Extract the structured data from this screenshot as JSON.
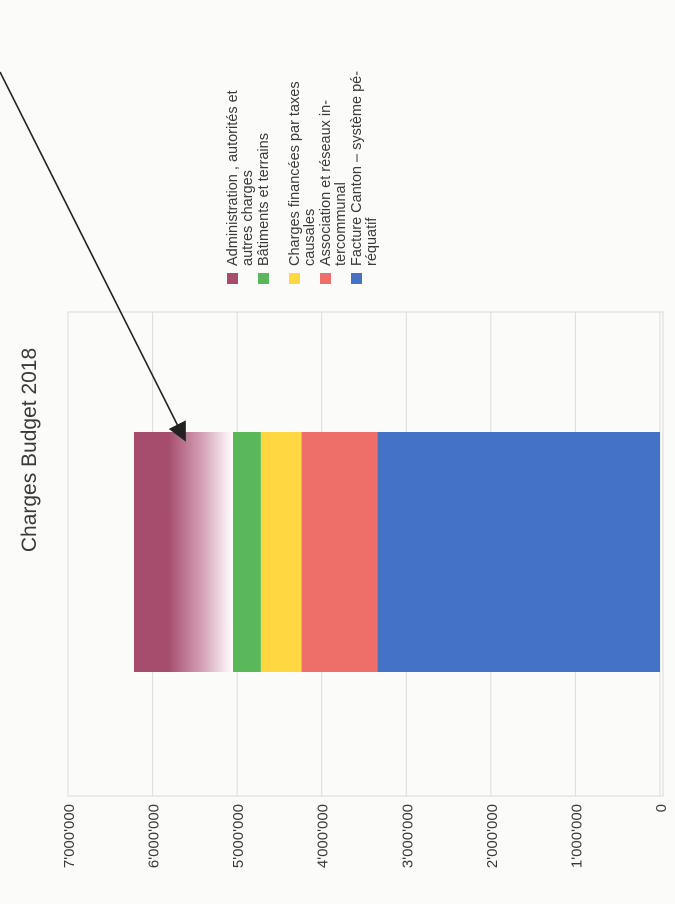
{
  "chart_data": {
    "type": "bar",
    "stacked": true,
    "orientation": "rotated-90-clockwise",
    "title": "Charges Budget 2018",
    "xlabel": "",
    "ylabel": "",
    "ylim": [
      0,
      7000000
    ],
    "ticks": [
      "0",
      "1'000'000",
      "2'000'000",
      "3'000'000",
      "4'000'000",
      "5'000'000",
      "6'000'000",
      "7'000'000"
    ],
    "tick_values": [
      0,
      1000000,
      2000000,
      3000000,
      4000000,
      5000000,
      6000000,
      7000000
    ],
    "grid": true,
    "legend_position": "right",
    "series": [
      {
        "name": "Facture Canton – système péréquatif",
        "lines": [
          "Facture Canton – système pé-",
          "réquatif"
        ],
        "value": 3340000,
        "color": "#4472c4"
      },
      {
        "name": "Association et réseaux intercommunal",
        "lines": [
          "Association et réseaux in-",
          "tercommunal"
        ],
        "value": 900000,
        "color": "#ee6e6a"
      },
      {
        "name": "Charges financées par taxes causales",
        "lines": [
          "Charges financées par taxes",
          "causales"
        ],
        "value": 480000,
        "color": "#ffd740"
      },
      {
        "name": "Bâtiments et terrains",
        "lines": [
          "Bâtiments et terrains"
        ],
        "value": 330000,
        "color": "#5ab75a"
      },
      {
        "name": "Administration , autorités et autres charges",
        "lines": [
          "Administration , autorités  et",
          "autres charges"
        ],
        "value": 1170000,
        "color": "#a64d6e"
      }
    ]
  }
}
